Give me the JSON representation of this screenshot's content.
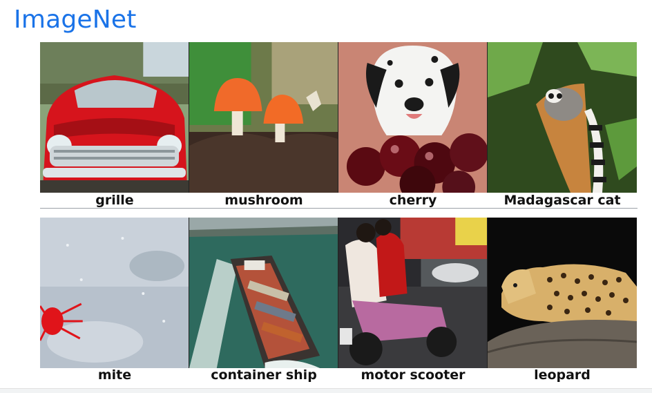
{
  "title": "ImageNet",
  "row1": [
    {
      "label": "grille",
      "icon": "red-car-grille-photo"
    },
    {
      "label": "mushroom",
      "icon": "orange-mushroom-photo"
    },
    {
      "label": "cherry",
      "icon": "dalmatian-cherries-photo"
    },
    {
      "label": "Madagascar cat",
      "icon": "ring-tailed-lemur-photo"
    }
  ],
  "row2": [
    {
      "label": "mite",
      "icon": "red-mite-photo"
    },
    {
      "label": "container ship",
      "icon": "container-ship-photo"
    },
    {
      "label": "motor scooter",
      "icon": "motor-scooter-photo"
    },
    {
      "label": "leopard",
      "icon": "leopard-photo"
    }
  ]
}
